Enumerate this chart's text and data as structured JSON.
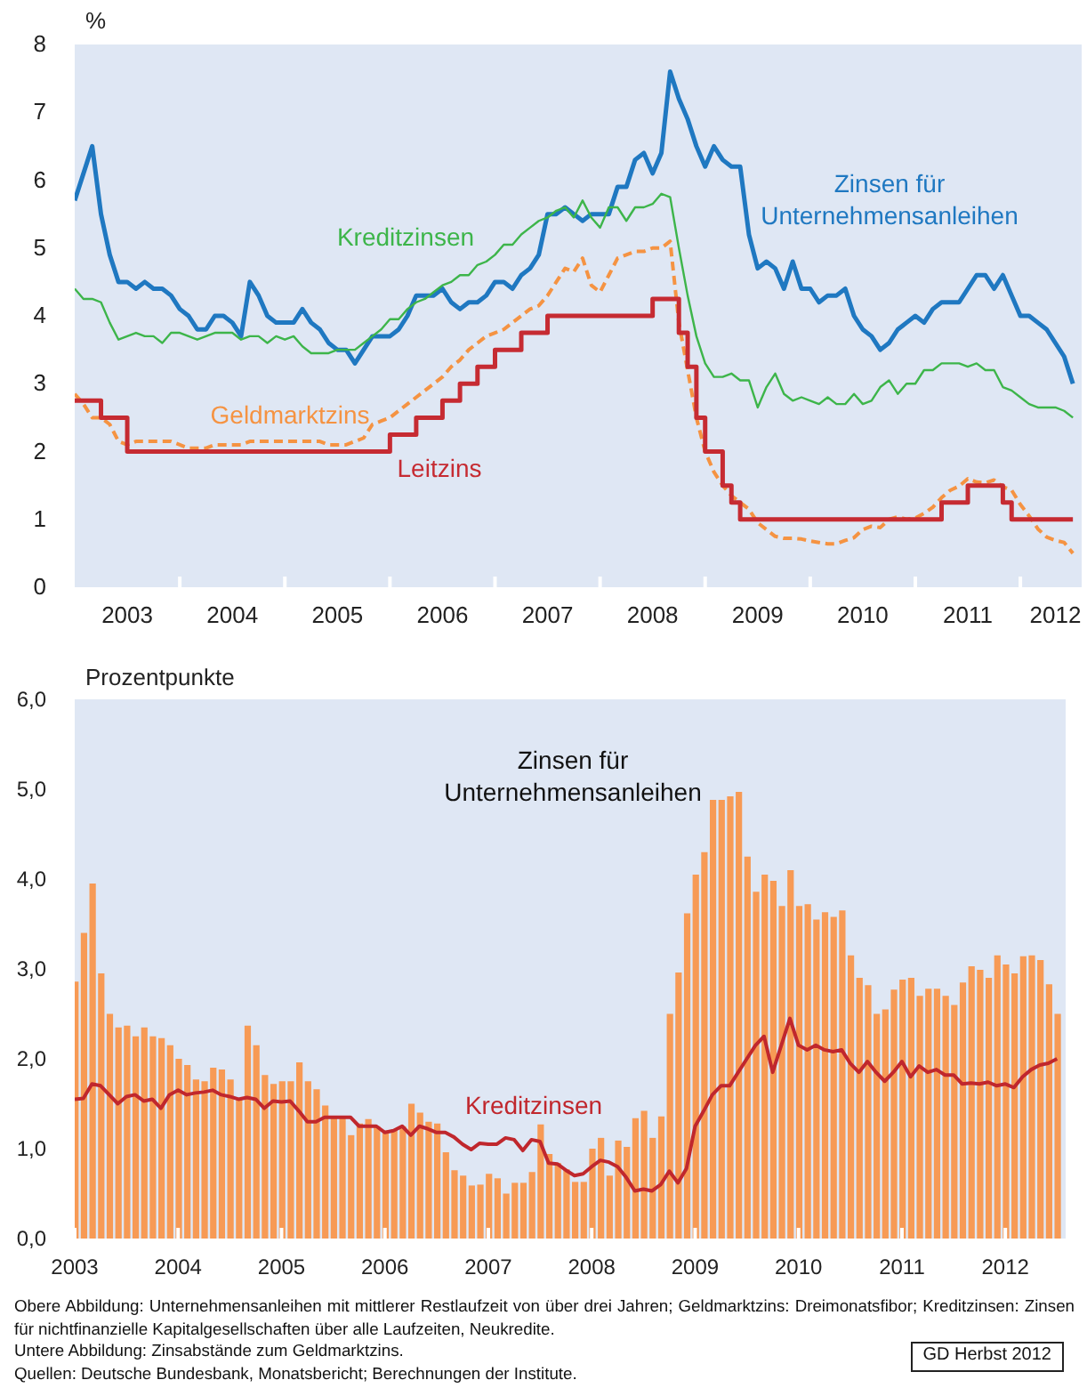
{
  "chart_data": [
    {
      "type": "line",
      "ylabel": "%",
      "xlim": [
        "2003",
        "2012-08"
      ],
      "ylim": [
        0,
        8
      ],
      "yticks": [
        0,
        1,
        2,
        3,
        4,
        5,
        6,
        7,
        8
      ],
      "xticks": [
        {
          "value": "2003-07",
          "label": "2003"
        },
        {
          "value": "2004",
          "label": null
        },
        {
          "value": "2004-07",
          "label": "2004"
        },
        {
          "value": "2005",
          "label": null
        },
        {
          "value": "2005-07",
          "label": "2005"
        },
        {
          "value": "2006",
          "label": null
        },
        {
          "value": "2006-07",
          "label": "2006"
        },
        {
          "value": "2007",
          "label": null
        },
        {
          "value": "2007-07",
          "label": "2007"
        },
        {
          "value": "2008",
          "label": null
        },
        {
          "value": "2008-07",
          "label": "2008"
        },
        {
          "value": "2009",
          "label": null
        },
        {
          "value": "2009-07",
          "label": "2009"
        },
        {
          "value": "2010",
          "label": null
        },
        {
          "value": "2010-07",
          "label": "2010"
        },
        {
          "value": "2011",
          "label": null
        },
        {
          "value": "2011-07",
          "label": "2011"
        },
        {
          "value": "2012",
          "label": null
        },
        {
          "value": "2012-05",
          "label": "2012"
        }
      ],
      "legend": false,
      "x": [
        "2003-01",
        "2003-02",
        "2003-03",
        "2003-04",
        "2003-05",
        "2003-06",
        "2003-07",
        "2003-08",
        "2003-09",
        "2003-10",
        "2003-11",
        "2003-12",
        "2004-01",
        "2004-02",
        "2004-03",
        "2004-04",
        "2004-05",
        "2004-06",
        "2004-07",
        "2004-08",
        "2004-09",
        "2004-10",
        "2004-11",
        "2004-12",
        "2005-01",
        "2005-02",
        "2005-03",
        "2005-04",
        "2005-05",
        "2005-06",
        "2005-07",
        "2005-08",
        "2005-09",
        "2005-10",
        "2005-11",
        "2005-12",
        "2006-01",
        "2006-02",
        "2006-03",
        "2006-04",
        "2006-05",
        "2006-06",
        "2006-07",
        "2006-08",
        "2006-09",
        "2006-10",
        "2006-11",
        "2006-12",
        "2007-01",
        "2007-02",
        "2007-03",
        "2007-04",
        "2007-05",
        "2007-06",
        "2007-07",
        "2007-08",
        "2007-09",
        "2007-10",
        "2007-11",
        "2007-12",
        "2008-01",
        "2008-02",
        "2008-03",
        "2008-04",
        "2008-05",
        "2008-06",
        "2008-07",
        "2008-08",
        "2008-09",
        "2008-10",
        "2008-11",
        "2008-12",
        "2009-01",
        "2009-02",
        "2009-03",
        "2009-04",
        "2009-05",
        "2009-06",
        "2009-07",
        "2009-08",
        "2009-09",
        "2009-10",
        "2009-11",
        "2009-12",
        "2010-01",
        "2010-02",
        "2010-03",
        "2010-04",
        "2010-05",
        "2010-06",
        "2010-07",
        "2010-08",
        "2010-09",
        "2010-10",
        "2010-11",
        "2010-12",
        "2011-01",
        "2011-02",
        "2011-03",
        "2011-04",
        "2011-05",
        "2011-06",
        "2011-07",
        "2011-08",
        "2011-09",
        "2011-10",
        "2011-11",
        "2011-12",
        "2012-01",
        "2012-02",
        "2012-03",
        "2012-04",
        "2012-05",
        "2012-06",
        "2012-07"
      ],
      "series": [
        {
          "name": "Zinsen für Unternehmensanleihen",
          "color": "#1f78c1",
          "values": [
            5.7,
            6.1,
            6.5,
            5.5,
            4.9,
            4.5,
            4.5,
            4.4,
            4.5,
            4.4,
            4.4,
            4.3,
            4.1,
            4.0,
            3.8,
            3.8,
            4.0,
            4.0,
            3.9,
            3.7,
            4.5,
            4.3,
            4.0,
            3.9,
            3.9,
            3.9,
            4.1,
            3.9,
            3.8,
            3.6,
            3.5,
            3.5,
            3.3,
            3.5,
            3.7,
            3.7,
            3.7,
            3.8,
            4.0,
            4.3,
            4.3,
            4.3,
            4.4,
            4.2,
            4.1,
            4.2,
            4.2,
            4.3,
            4.5,
            4.5,
            4.4,
            4.6,
            4.7,
            4.9,
            5.5,
            5.5,
            5.6,
            5.5,
            5.4,
            5.5,
            5.5,
            5.5,
            5.9,
            5.9,
            6.3,
            6.4,
            6.1,
            6.4,
            7.6,
            7.2,
            6.9,
            6.5,
            6.2,
            6.5,
            6.3,
            6.2,
            6.2,
            5.2,
            4.7,
            4.8,
            4.7,
            4.4,
            4.8,
            4.4,
            4.4,
            4.2,
            4.3,
            4.3,
            4.4,
            4.0,
            3.8,
            3.7,
            3.5,
            3.6,
            3.8,
            3.9,
            4.0,
            3.9,
            4.1,
            4.2,
            4.2,
            4.2,
            4.4,
            4.6,
            4.6,
            4.4,
            4.6,
            4.3,
            4.0,
            4.0,
            3.9,
            3.8,
            3.6,
            3.4,
            3.0
          ]
        },
        {
          "name": "Kreditzinsen",
          "color": "#3db54a",
          "values": [
            4.4,
            4.25,
            4.25,
            4.2,
            3.9,
            3.65,
            3.7,
            3.75,
            3.7,
            3.7,
            3.6,
            3.75,
            3.75,
            3.7,
            3.65,
            3.7,
            3.75,
            3.75,
            3.75,
            3.65,
            3.7,
            3.7,
            3.6,
            3.7,
            3.65,
            3.7,
            3.55,
            3.45,
            3.45,
            3.45,
            3.5,
            3.5,
            3.5,
            3.6,
            3.7,
            3.8,
            3.95,
            3.95,
            4.1,
            4.2,
            4.25,
            4.35,
            4.45,
            4.5,
            4.6,
            4.6,
            4.75,
            4.8,
            4.9,
            5.05,
            5.05,
            5.2,
            5.3,
            5.4,
            5.45,
            5.55,
            5.6,
            5.45,
            5.7,
            5.45,
            5.3,
            5.6,
            5.6,
            5.4,
            5.6,
            5.6,
            5.65,
            5.8,
            5.75,
            5.0,
            4.3,
            3.7,
            3.3,
            3.1,
            3.1,
            3.15,
            3.05,
            3.05,
            2.65,
            2.95,
            3.15,
            2.85,
            2.75,
            2.8,
            2.75,
            2.7,
            2.8,
            2.7,
            2.7,
            2.85,
            2.7,
            2.75,
            2.95,
            3.05,
            2.85,
            3.0,
            3.0,
            3.2,
            3.2,
            3.3,
            3.3,
            3.3,
            3.25,
            3.3,
            3.2,
            3.2,
            2.95,
            2.9,
            2.8,
            2.7,
            2.65,
            2.65,
            2.65,
            2.6,
            2.5
          ]
        },
        {
          "name": "Geldmarktzins",
          "color": "#f59342",
          "line_style": "dashed",
          "values": [
            2.85,
            2.7,
            2.5,
            2.5,
            2.4,
            2.15,
            2.1,
            2.15,
            2.15,
            2.15,
            2.15,
            2.15,
            2.1,
            2.05,
            2.05,
            2.05,
            2.1,
            2.1,
            2.1,
            2.1,
            2.15,
            2.15,
            2.15,
            2.15,
            2.15,
            2.15,
            2.15,
            2.15,
            2.15,
            2.1,
            2.1,
            2.1,
            2.15,
            2.2,
            2.4,
            2.45,
            2.5,
            2.6,
            2.7,
            2.8,
            2.9,
            3.0,
            3.1,
            3.25,
            3.35,
            3.5,
            3.6,
            3.7,
            3.75,
            3.8,
            3.9,
            4.0,
            4.1,
            4.15,
            4.3,
            4.5,
            4.7,
            4.65,
            4.85,
            4.45,
            4.35,
            4.6,
            4.85,
            4.9,
            4.95,
            4.95,
            5.0,
            5.0,
            5.1,
            3.9,
            3.2,
            2.5,
            2.0,
            1.7,
            1.5,
            1.35,
            1.25,
            1.15,
            0.95,
            0.85,
            0.75,
            0.72,
            0.72,
            0.71,
            0.68,
            0.66,
            0.64,
            0.64,
            0.69,
            0.73,
            0.85,
            0.9,
            0.88,
            1.0,
            1.04,
            1.0,
            1.02,
            1.09,
            1.18,
            1.32,
            1.43,
            1.49,
            1.6,
            1.55,
            1.54,
            1.58,
            1.48,
            1.43,
            1.22,
            1.05,
            0.86,
            0.74,
            0.69,
            0.66,
            0.5
          ]
        },
        {
          "name": "Leitzins",
          "type": "step",
          "color": "#c62b32",
          "values": [
            2.75,
            2.75,
            2.75,
            2.5,
            2.5,
            2.5,
            2.0,
            2.0,
            2.0,
            2.0,
            2.0,
            2.0,
            2.0,
            2.0,
            2.0,
            2.0,
            2.0,
            2.0,
            2.0,
            2.0,
            2.0,
            2.0,
            2.0,
            2.0,
            2.0,
            2.0,
            2.0,
            2.0,
            2.0,
            2.0,
            2.0,
            2.0,
            2.0,
            2.0,
            2.0,
            2.0,
            2.25,
            2.25,
            2.25,
            2.5,
            2.5,
            2.5,
            2.75,
            2.75,
            3.0,
            3.0,
            3.25,
            3.25,
            3.5,
            3.5,
            3.5,
            3.75,
            3.75,
            3.75,
            4.0,
            4.0,
            4.0,
            4.0,
            4.0,
            4.0,
            4.0,
            4.0,
            4.0,
            4.0,
            4.0,
            4.0,
            4.25,
            4.25,
            4.25,
            3.75,
            3.25,
            2.5,
            2.0,
            2.0,
            1.5,
            1.25,
            1.0,
            1.0,
            1.0,
            1.0,
            1.0,
            1.0,
            1.0,
            1.0,
            1.0,
            1.0,
            1.0,
            1.0,
            1.0,
            1.0,
            1.0,
            1.0,
            1.0,
            1.0,
            1.0,
            1.0,
            1.0,
            1.0,
            1.0,
            1.25,
            1.25,
            1.25,
            1.5,
            1.5,
            1.5,
            1.5,
            1.25,
            1.0,
            1.0,
            1.0,
            1.0,
            1.0,
            1.0,
            1.0,
            1.0
          ]
        }
      ]
    },
    {
      "type": "bar",
      "ylabel": "Prozentpunkte",
      "xlim": [
        "2003",
        "2012-08"
      ],
      "xticks": [
        "2003",
        "2004",
        "2005",
        "2006",
        "2007",
        "2008",
        "2009",
        "2010",
        "2011",
        "2012"
      ],
      "ylim": [
        0,
        6
      ],
      "yticks": [
        {
          "value": 0,
          "label": "0,0"
        },
        {
          "value": 1,
          "label": "1,0"
        },
        {
          "value": 2,
          "label": "2,0"
        },
        {
          "value": 3,
          "label": "3,0"
        },
        {
          "value": 4,
          "label": "4,0"
        },
        {
          "value": 5,
          "label": "5,0"
        },
        {
          "value": 6,
          "label": "6,0"
        }
      ],
      "legend": false,
      "x": [
        "2003-01",
        "2003-02",
        "2003-03",
        "2003-04",
        "2003-05",
        "2003-06",
        "2003-07",
        "2003-08",
        "2003-09",
        "2003-10",
        "2003-11",
        "2003-12",
        "2004-01",
        "2004-02",
        "2004-03",
        "2004-04",
        "2004-05",
        "2004-06",
        "2004-07",
        "2004-08",
        "2004-09",
        "2004-10",
        "2004-11",
        "2004-12",
        "2005-01",
        "2005-02",
        "2005-03",
        "2005-04",
        "2005-05",
        "2005-06",
        "2005-07",
        "2005-08",
        "2005-09",
        "2005-10",
        "2005-11",
        "2005-12",
        "2006-01",
        "2006-02",
        "2006-03",
        "2006-04",
        "2006-05",
        "2006-06",
        "2006-07",
        "2006-08",
        "2006-09",
        "2006-10",
        "2006-11",
        "2006-12",
        "2007-01",
        "2007-02",
        "2007-03",
        "2007-04",
        "2007-05",
        "2007-06",
        "2007-07",
        "2007-08",
        "2007-09",
        "2007-10",
        "2007-11",
        "2007-12",
        "2008-01",
        "2008-02",
        "2008-03",
        "2008-04",
        "2008-05",
        "2008-06",
        "2008-07",
        "2008-08",
        "2008-09",
        "2008-10",
        "2008-11",
        "2008-12",
        "2009-01",
        "2009-02",
        "2009-03",
        "2009-04",
        "2009-05",
        "2009-06",
        "2009-07",
        "2009-08",
        "2009-09",
        "2009-10",
        "2009-11",
        "2009-12",
        "2010-01",
        "2010-02",
        "2010-03",
        "2010-04",
        "2010-05",
        "2010-06",
        "2010-07",
        "2010-08",
        "2010-09",
        "2010-10",
        "2010-11",
        "2010-12",
        "2011-01",
        "2011-02",
        "2011-03",
        "2011-04",
        "2011-05",
        "2011-06",
        "2011-07",
        "2011-08",
        "2011-09",
        "2011-10",
        "2011-11",
        "2011-12",
        "2012-01",
        "2012-02",
        "2012-03",
        "2012-04",
        "2012-05",
        "2012-06",
        "2012-07"
      ],
      "series": [
        {
          "name": "Zinsen für Unternehmensanleihen",
          "color": "#f79a55",
          "values": [
            2.86,
            3.4,
            3.95,
            2.95,
            2.5,
            2.35,
            2.37,
            2.25,
            2.35,
            2.25,
            2.23,
            2.15,
            2.0,
            1.93,
            1.77,
            1.75,
            1.9,
            1.88,
            1.77,
            1.55,
            2.37,
            2.15,
            1.82,
            1.72,
            1.75,
            1.75,
            1.96,
            1.75,
            1.66,
            1.48,
            1.35,
            1.35,
            1.15,
            1.28,
            1.33,
            1.25,
            1.2,
            1.2,
            1.25,
            1.5,
            1.4,
            1.3,
            1.28,
            0.96,
            0.76,
            0.7,
            0.59,
            0.6,
            0.72,
            0.67,
            0.5,
            0.62,
            0.62,
            0.74,
            1.27,
            0.94,
            0.84,
            0.77,
            0.63,
            0.63,
            1.0,
            1.12,
            0.7,
            1.09,
            1.02,
            1.34,
            1.42,
            1.12,
            1.36,
            2.5,
            2.96,
            3.62,
            4.05,
            4.3,
            4.88,
            4.88,
            4.92,
            4.97,
            4.25,
            3.86,
            4.05,
            3.98,
            3.7,
            4.1,
            3.7,
            3.72,
            3.55,
            3.63,
            3.58,
            3.65,
            3.15,
            2.9,
            2.82,
            2.5,
            2.55,
            2.77,
            2.88,
            2.9,
            2.7,
            2.78,
            2.78,
            2.7,
            2.6,
            2.85,
            3.03,
            2.99,
            2.9,
            3.15,
            3.05,
            2.95,
            3.14,
            3.15,
            3.1,
            2.83,
            2.5
          ]
        },
        {
          "name": "Kreditzinsen",
          "type": "line",
          "color": "#c0272d",
          "values": [
            1.55,
            1.56,
            1.72,
            1.7,
            1.6,
            1.5,
            1.58,
            1.6,
            1.53,
            1.55,
            1.45,
            1.6,
            1.65,
            1.6,
            1.62,
            1.63,
            1.65,
            1.6,
            1.58,
            1.55,
            1.57,
            1.55,
            1.45,
            1.53,
            1.52,
            1.53,
            1.42,
            1.3,
            1.3,
            1.35,
            1.35,
            1.35,
            1.35,
            1.25,
            1.25,
            1.25,
            1.18,
            1.2,
            1.25,
            1.15,
            1.25,
            1.22,
            1.18,
            1.18,
            1.13,
            1.05,
            0.99,
            1.06,
            1.05,
            1.05,
            1.12,
            1.1,
            0.98,
            1.1,
            1.08,
            0.84,
            0.83,
            0.76,
            0.7,
            0.72,
            0.8,
            0.87,
            0.85,
            0.8,
            0.68,
            0.53,
            0.55,
            0.53,
            0.6,
            0.75,
            0.62,
            0.78,
            1.25,
            1.42,
            1.6,
            1.7,
            1.7,
            1.85,
            2.0,
            2.15,
            2.25,
            1.85,
            2.15,
            2.45,
            2.15,
            2.1,
            2.15,
            2.1,
            2.08,
            2.1,
            1.95,
            1.85,
            1.97,
            1.85,
            1.75,
            1.85,
            1.97,
            1.8,
            1.92,
            1.85,
            1.88,
            1.82,
            1.82,
            1.72,
            1.73,
            1.72,
            1.74,
            1.7,
            1.72,
            1.68,
            1.8,
            1.88,
            1.93,
            1.95,
            2.0
          ]
        }
      ],
      "annotations": [
        "Obere Abbildung: Unternehmensanleihen mit mittlerer Restlaufzeit von über drei Jahren; Geldmarktzins: Dreimonatsfibor; Kreditzinsen: Zinsen für nichtfinanzielle Kapitalgesellschaften über alle Laufzeiten, Neukredite.",
        "Untere Abbildung: Zinsabstände zum Geldmarktzins.",
        "Quellen: Deutsche Bundesbank, Monatsbericht; Berechnungen der Institute.",
        "GD Herbst 2012"
      ]
    }
  ]
}
